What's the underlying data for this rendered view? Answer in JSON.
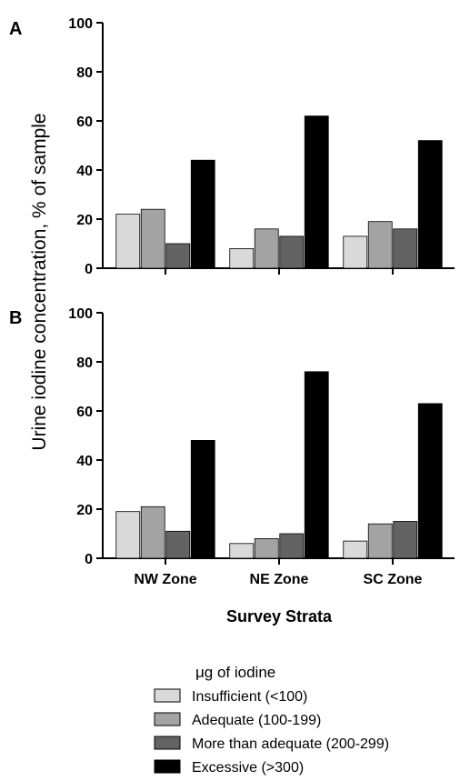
{
  "chart_data": {
    "type": "bar",
    "ylabel": "Urine iodine concentration, % of sample",
    "xlabel": "Survey Strata",
    "categories": [
      "NW Zone",
      "NE Zone",
      "SC Zone"
    ],
    "yticks": [
      "0",
      "20",
      "40",
      "60",
      "80",
      "100"
    ],
    "ylim": [
      0,
      100
    ],
    "legend": {
      "title": "μg of iodine",
      "placement": "bottom"
    },
    "series": [
      {
        "name": "Insufficient (<100)",
        "color": "#d9d9d9"
      },
      {
        "name": "Adequate (100-199)",
        "color": "#a3a3a3"
      },
      {
        "name": "More than adequate (200-299)",
        "color": "#636363"
      },
      {
        "name": "Excessive (>300)",
        "color": "#000000"
      }
    ],
    "panels": [
      {
        "label": "A",
        "values": [
          [
            22,
            24,
            10,
            44
          ],
          [
            8,
            16,
            13,
            62
          ],
          [
            13,
            19,
            16,
            52
          ]
        ]
      },
      {
        "label": "B",
        "values": [
          [
            19,
            21,
            11,
            48
          ],
          [
            6,
            8,
            10,
            76
          ],
          [
            7,
            14,
            15,
            63
          ]
        ]
      }
    ]
  }
}
